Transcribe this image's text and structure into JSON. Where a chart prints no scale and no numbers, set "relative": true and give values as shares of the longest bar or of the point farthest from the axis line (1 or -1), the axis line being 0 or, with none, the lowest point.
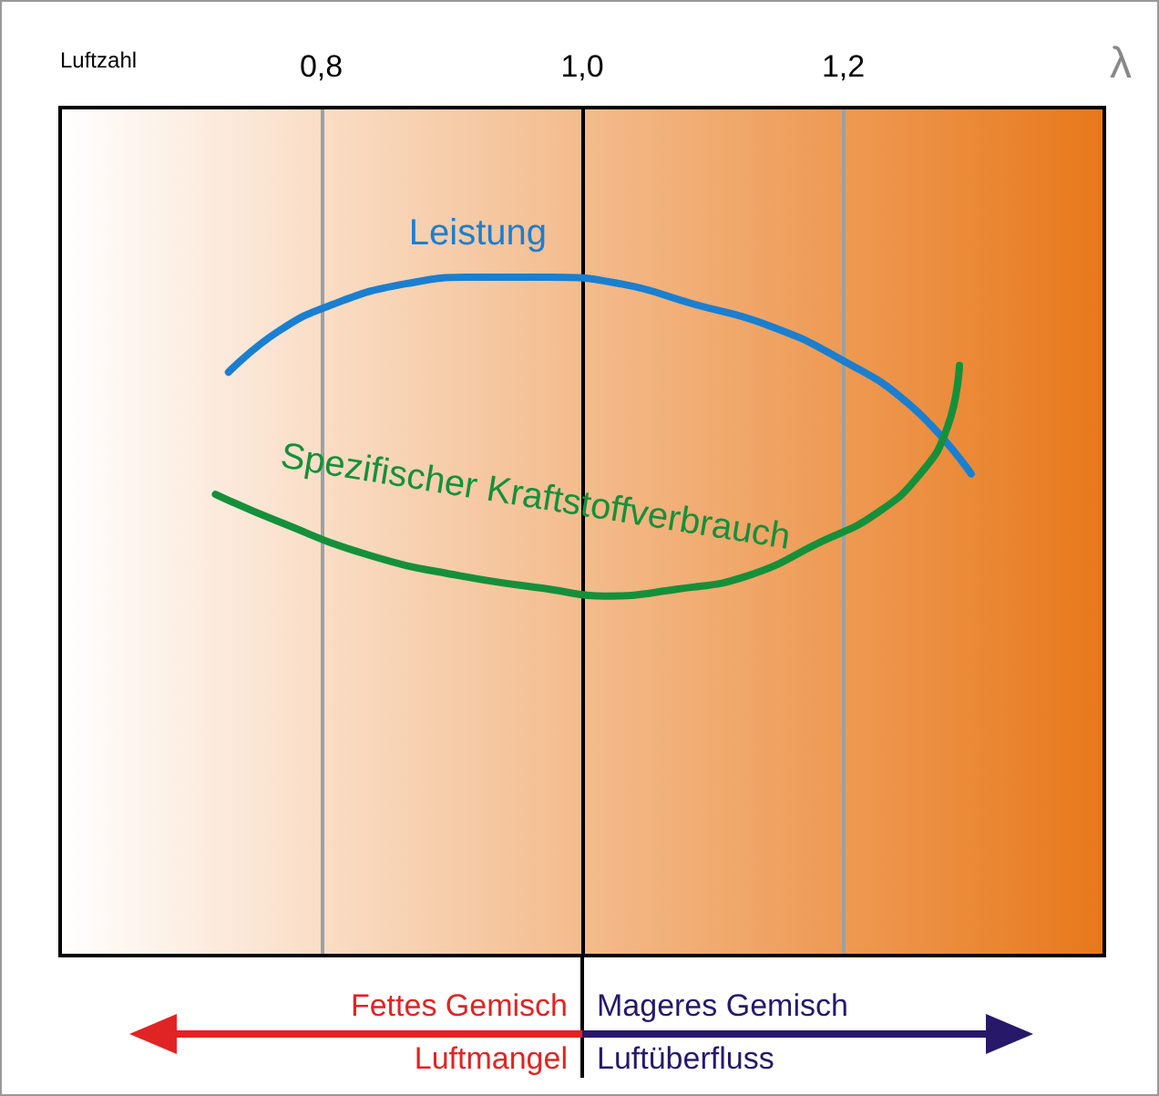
{
  "chart_data": {
    "type": "line",
    "relative": true,
    "xlabel": "λ",
    "xlim": [
      0.6,
      1.4
    ],
    "xticks": [
      {
        "value": 0.8,
        "label": "0,8"
      },
      {
        "value": 1.0,
        "label": "1,0"
      },
      {
        "value": 1.2,
        "label": "1,2"
      }
    ],
    "grid": "x",
    "marker": "none",
    "series": [
      {
        "name": "Leistung",
        "color": "#1a7fd0",
        "x": [
          0.729,
          0.767,
          0.809,
          0.864,
          0.92,
          0.975,
          1.03,
          1.086,
          1.141,
          1.197,
          1.252,
          1.298
        ],
        "values": [
          0.86,
          0.92,
          0.96,
          0.99,
          1,
          1,
          0.99,
          0.96,
          0.93,
          0.88,
          0.81,
          0.71
        ]
      },
      {
        "name": "Spezifischer Kraftstoffverbrauch",
        "color": "#15903a",
        "x": [
          0.719,
          0.767,
          0.837,
          0.906,
          0.975,
          1.017,
          1.072,
          1.127,
          1.183,
          1.224,
          1.259,
          1.28,
          1.289
        ],
        "values": [
          0.68,
          0.64,
          0.59,
          0.56,
          0.54,
          0.53,
          0.54,
          0.56,
          0.61,
          0.65,
          0.71,
          0.78,
          0.87
        ]
      }
    ],
    "ref_lines": [
      {
        "axis": "x",
        "value": 1.0,
        "color": "#000000"
      }
    ],
    "bands": [
      {
        "axis": "x",
        "from": 0.6,
        "to": 1.4,
        "color": "#e8781a"
      }
    ],
    "annotations": [
      "Luftzahl",
      "Fettes Gemisch",
      "Luftmangel",
      "Mageres Gemisch",
      "Luftüberfluss"
    ]
  }
}
